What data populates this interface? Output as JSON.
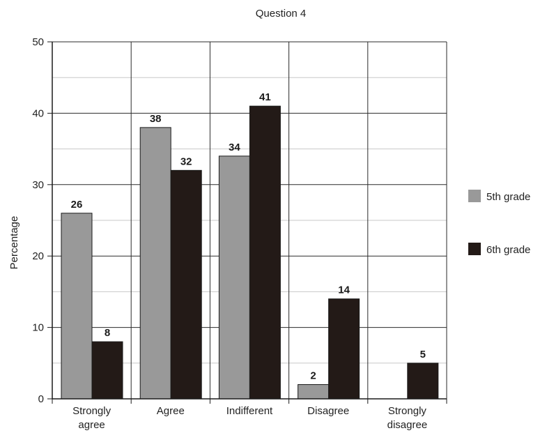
{
  "chart_data": {
    "type": "bar",
    "title": "Question 4",
    "xlabel": "",
    "ylabel": "Percentage",
    "ylim": [
      0,
      50
    ],
    "yticks": [
      0,
      10,
      20,
      30,
      40,
      50
    ],
    "grid": true,
    "legend_position": "right",
    "categories": [
      [
        "Strongly",
        "agree"
      ],
      [
        "Agree"
      ],
      [
        "Indifferent"
      ],
      [
        "Disagree"
      ],
      [
        "Strongly",
        "disagree"
      ]
    ],
    "series": [
      {
        "name": "5th grade",
        "color": "#999999",
        "values": [
          26,
          38,
          34,
          2,
          null
        ]
      },
      {
        "name": "6th grade",
        "color": "#231a17",
        "values": [
          8,
          32,
          41,
          14,
          5
        ]
      }
    ]
  }
}
